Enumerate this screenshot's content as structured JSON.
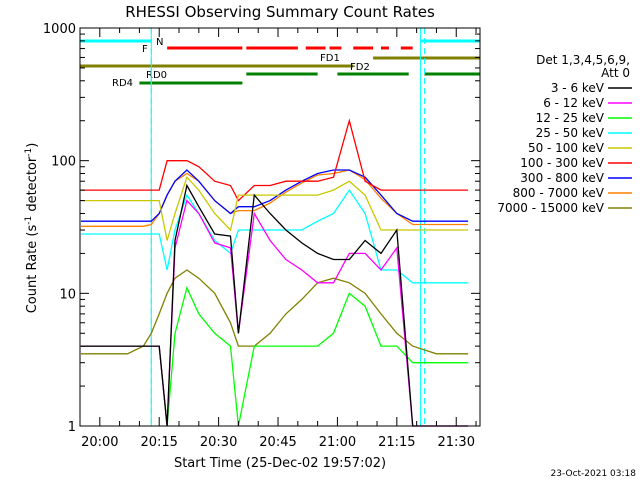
{
  "chart_data": {
    "type": "line",
    "title": "RHESSI Observing Summary Count Rates",
    "xlabel": "Start Time (25-Dec-02 19:57:02)",
    "ylabel": "Count Rate (s",
    "ylabel_sup": "-1",
    "ylabel_tail": " detector",
    "ylabel_close": ")",
    "footer": "23-Oct-2021 03:18",
    "y_scale": "log",
    "xlim": [
      "19:55",
      "21:36"
    ],
    "ylim": [
      1,
      1000
    ],
    "x_ticks": [
      "20:00",
      "20:15",
      "20:30",
      "20:45",
      "21:00",
      "21:15",
      "21:30"
    ],
    "y_ticks": [
      "1",
      "10",
      "100",
      "1000"
    ],
    "legend_header": [
      "Det 1,3,4,5,6,9,",
      "Att 0"
    ],
    "grid": false,
    "flag_labels": {
      "N": "N",
      "F": "F",
      "FD1": "FD1",
      "FD2": "FD2",
      "RD0": "RD0",
      "RD4": "RD4"
    },
    "flag_colors": {
      "N": "#00ffff",
      "F": "#ff0000",
      "FD": "#808000",
      "RD": "#008000"
    },
    "night_segments": [
      [
        "19:55",
        "20:13"
      ],
      [
        "21:21",
        "21:36"
      ]
    ],
    "flare_segments": [
      [
        "20:17",
        "20:36"
      ],
      [
        "20:37",
        "20:50"
      ],
      [
        "20:52",
        "20:57"
      ],
      [
        "20:58",
        "21:01"
      ],
      [
        "21:04",
        "21:09"
      ],
      [
        "21:11",
        "21:13"
      ],
      [
        "21:16",
        "21:19"
      ]
    ],
    "fd1_segment": [
      "21:09",
      "21:36"
    ],
    "fd2_segment": [
      "19:55",
      "21:04"
    ],
    "rd0_segments": [
      [
        "20:37",
        "20:55"
      ],
      [
        "21:00",
        "21:18"
      ],
      [
        "21:22",
        "21:36"
      ]
    ],
    "rd4_segment": [
      "20:10",
      "20:36"
    ],
    "saa_times": [
      "20:13",
      "21:22"
    ],
    "series": [
      {
        "name": "3 - 6 keV",
        "color": "#000000",
        "values": [
          4,
          4,
          4,
          4,
          4,
          4,
          4,
          1,
          25,
          65,
          45,
          28,
          27,
          5,
          55,
          40,
          30,
          24,
          20,
          18,
          18,
          25,
          20,
          30,
          1,
          1,
          1
        ]
      },
      {
        "name": "6 - 12 keV",
        "color": "#ff00ff",
        "values": [
          4,
          4,
          4,
          4,
          4,
          4,
          4,
          1,
          22,
          50,
          40,
          24,
          22,
          5,
          40,
          25,
          18,
          15,
          12,
          12,
          20,
          20,
          15,
          22,
          1,
          1,
          1
        ]
      },
      {
        "name": "12 - 25 keV",
        "color": "#00ff00",
        "values": [
          4,
          4,
          4,
          4,
          4,
          4,
          4,
          1,
          5,
          11,
          7,
          5,
          4,
          1,
          4,
          4,
          4,
          4,
          4,
          5,
          10,
          8,
          4,
          4,
          3,
          3,
          3
        ]
      },
      {
        "name": "25 - 50 keV",
        "color": "#00ffff",
        "values": [
          28,
          28,
          28,
          28,
          28,
          28,
          28,
          15,
          30,
          55,
          40,
          25,
          20,
          30,
          30,
          30,
          30,
          30,
          35,
          40,
          60,
          40,
          15,
          15,
          12,
          12,
          12
        ]
      },
      {
        "name": "50 - 100 keV",
        "color": "#c8c800",
        "values": [
          50,
          50,
          50,
          50,
          50,
          50,
          50,
          25,
          40,
          75,
          60,
          40,
          30,
          55,
          55,
          55,
          55,
          55,
          55,
          60,
          70,
          55,
          30,
          30,
          30,
          30,
          30
        ]
      },
      {
        "name": "100 - 300 keV",
        "color": "#ff0000",
        "values": [
          60,
          60,
          60,
          60,
          60,
          60,
          60,
          100,
          100,
          100,
          90,
          70,
          65,
          50,
          65,
          65,
          70,
          70,
          70,
          75,
          200,
          70,
          60,
          60,
          60,
          60,
          60
        ]
      },
      {
        "name": "300 - 800 keV",
        "color": "#0000ff",
        "values": [
          35,
          35,
          35,
          35,
          35,
          35,
          40,
          55,
          70,
          85,
          70,
          50,
          40,
          45,
          45,
          50,
          60,
          70,
          80,
          85,
          85,
          75,
          55,
          40,
          35,
          35,
          35
        ]
      },
      {
        "name": "800 - 7000 keV",
        "color": "#ff8000",
        "values": [
          32,
          32,
          32,
          32,
          32,
          33,
          40,
          55,
          70,
          80,
          70,
          50,
          40,
          42,
          42,
          48,
          58,
          68,
          78,
          80,
          85,
          72,
          52,
          40,
          33,
          33,
          33
        ]
      },
      {
        "name": "7000 - 15000 keV",
        "color": "#808000",
        "values": [
          3.5,
          3.5,
          3.5,
          3.5,
          4,
          5,
          7,
          10,
          13,
          15,
          13,
          10,
          6,
          4,
          4,
          5,
          7,
          9,
          12,
          13,
          12,
          10,
          7,
          5,
          4,
          3.5,
          3.5
        ]
      }
    ],
    "x_minutes": [
      -2,
      2,
      6,
      10,
      14,
      16,
      18,
      20,
      22,
      25,
      28,
      32,
      36,
      38,
      42,
      46,
      50,
      54,
      58,
      62,
      66,
      70,
      74,
      78,
      82,
      88,
      96
    ]
  }
}
